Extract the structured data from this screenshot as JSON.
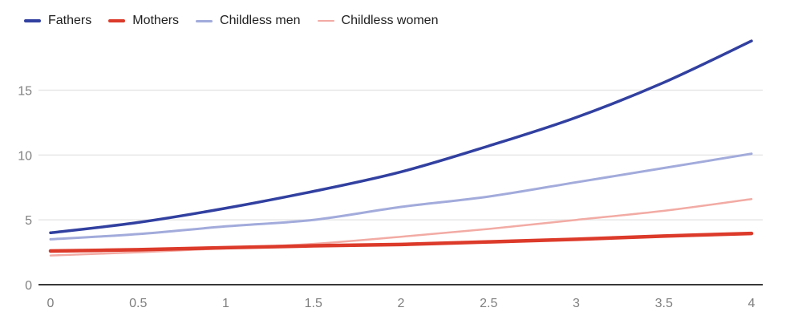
{
  "chart_data": {
    "type": "line",
    "title": "",
    "xlabel": "",
    "ylabel": "",
    "x": [
      0,
      0.5,
      1,
      1.5,
      2,
      2.5,
      3,
      3.5,
      4
    ],
    "series": [
      {
        "name": "Fathers",
        "color": "#3140a0",
        "line_width": 3.5,
        "values": [
          4.0,
          4.8,
          5.9,
          7.2,
          8.7,
          10.7,
          12.9,
          15.6,
          18.8
        ]
      },
      {
        "name": "Mothers",
        "color": "#dc3a2a",
        "line_width": 4.5,
        "values": [
          2.6,
          2.7,
          2.85,
          3.0,
          3.1,
          3.3,
          3.5,
          3.75,
          3.95
        ]
      },
      {
        "name": "Childless men",
        "color": "#a2abdb",
        "line_width": 3.0,
        "values": [
          3.5,
          3.9,
          4.5,
          5.0,
          6.0,
          6.8,
          7.9,
          9.0,
          10.1
        ]
      },
      {
        "name": "Childless women",
        "color": "#f2aba4",
        "line_width": 2.5,
        "values": [
          2.25,
          2.5,
          2.8,
          3.15,
          3.7,
          4.3,
          5.0,
          5.7,
          6.6
        ]
      }
    ],
    "xticks": [
      "0",
      "0.5",
      "1",
      "1.5",
      "2",
      "2.5",
      "3",
      "3.5",
      "4"
    ],
    "yticks": [
      "0",
      "5",
      "10",
      "15"
    ],
    "xlim": [
      0,
      4
    ],
    "ylim": [
      0,
      19.5
    ],
    "grid": true,
    "legend_position": "top-left"
  },
  "styles": {
    "background": "#ffffff",
    "grid_color": "#e7e7e7",
    "axis_color": "#383838",
    "tick_label_color": "#7f7f7f",
    "legend_text_color": "#202020"
  }
}
